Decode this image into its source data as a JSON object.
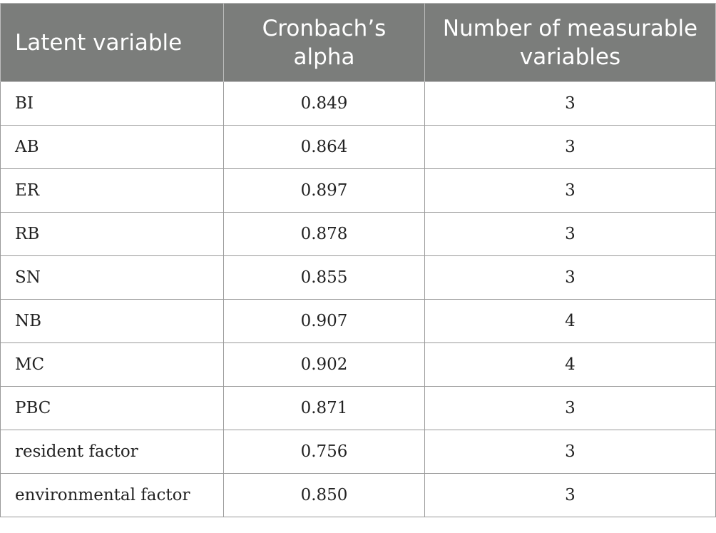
{
  "table": {
    "headers": [
      "Latent variable",
      "Cronbach’s alpha",
      "Number of measurable variables"
    ],
    "rows": [
      {
        "latent_variable": "BI",
        "cronbach_alpha": "0.849",
        "num_measurable": "3"
      },
      {
        "latent_variable": "AB",
        "cronbach_alpha": "0.864",
        "num_measurable": "3"
      },
      {
        "latent_variable": "ER",
        "cronbach_alpha": "0.897",
        "num_measurable": "3"
      },
      {
        "latent_variable": "RB",
        "cronbach_alpha": "0.878",
        "num_measurable": "3"
      },
      {
        "latent_variable": "SN",
        "cronbach_alpha": "0.855",
        "num_measurable": "3"
      },
      {
        "latent_variable": "NB",
        "cronbach_alpha": "0.907",
        "num_measurable": "4"
      },
      {
        "latent_variable": "MC",
        "cronbach_alpha": "0.902",
        "num_measurable": "4"
      },
      {
        "latent_variable": "PBC",
        "cronbach_alpha": "0.871",
        "num_measurable": "3"
      },
      {
        "latent_variable": "resident factor",
        "cronbach_alpha": "0.756",
        "num_measurable": "3"
      },
      {
        "latent_variable": "environmental factor",
        "cronbach_alpha": "0.850",
        "num_measurable": "3"
      }
    ]
  },
  "colors": {
    "header_bg": "#7b7d7b",
    "header_text": "#ffffff",
    "cell_text": "#222222",
    "border": "#9a9a9a"
  }
}
